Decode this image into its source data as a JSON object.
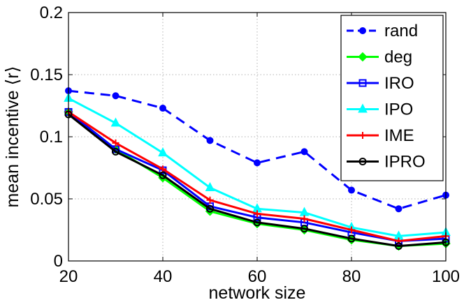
{
  "chart_data": {
    "type": "line",
    "title": "",
    "xlabel": "network size",
    "ylabel": "mean incentive ⟨r⟩",
    "xlim": [
      20,
      100
    ],
    "ylim": [
      0,
      0.2
    ],
    "xticks": [
      20,
      40,
      60,
      80,
      100
    ],
    "xtick_labels": [
      "20",
      "40",
      "60",
      "80",
      "100"
    ],
    "yticks": [
      0,
      0.05,
      0.1,
      0.15,
      0.2
    ],
    "ytick_labels": [
      "0",
      "0.05",
      "0.1",
      "0.15",
      "0.2"
    ],
    "grid": true,
    "legend_position": "top-right",
    "x": [
      20,
      30,
      40,
      50,
      60,
      70,
      80,
      90,
      100
    ],
    "series": [
      {
        "name": "rand",
        "color": "#0000ff",
        "marker": "circle-filled",
        "dash": "dashed",
        "values": [
          0.137,
          0.133,
          0.123,
          0.097,
          0.079,
          0.088,
          0.057,
          0.042,
          0.053
        ]
      },
      {
        "name": "deg",
        "color": "#00ff00",
        "marker": "diamond",
        "dash": "solid",
        "values": [
          0.12,
          0.09,
          0.067,
          0.04,
          0.03,
          0.025,
          0.017,
          0.012,
          0.014
        ]
      },
      {
        "name": "IRO",
        "color": "#0000ff",
        "marker": "square",
        "dash": "solid",
        "values": [
          0.12,
          0.09,
          0.073,
          0.044,
          0.035,
          0.031,
          0.023,
          0.016,
          0.018
        ]
      },
      {
        "name": "IPO",
        "color": "#00ffff",
        "marker": "triangle",
        "dash": "solid",
        "values": [
          0.131,
          0.111,
          0.087,
          0.059,
          0.042,
          0.039,
          0.027,
          0.02,
          0.023
        ]
      },
      {
        "name": "IME",
        "color": "#ff0000",
        "marker": "plus",
        "dash": "solid",
        "values": [
          0.12,
          0.095,
          0.074,
          0.049,
          0.038,
          0.034,
          0.025,
          0.016,
          0.02
        ]
      },
      {
        "name": "IPRO",
        "color": "#000000",
        "marker": "circle-open",
        "dash": "solid",
        "values": [
          0.118,
          0.088,
          0.069,
          0.042,
          0.031,
          0.026,
          0.018,
          0.012,
          0.015
        ]
      }
    ]
  }
}
